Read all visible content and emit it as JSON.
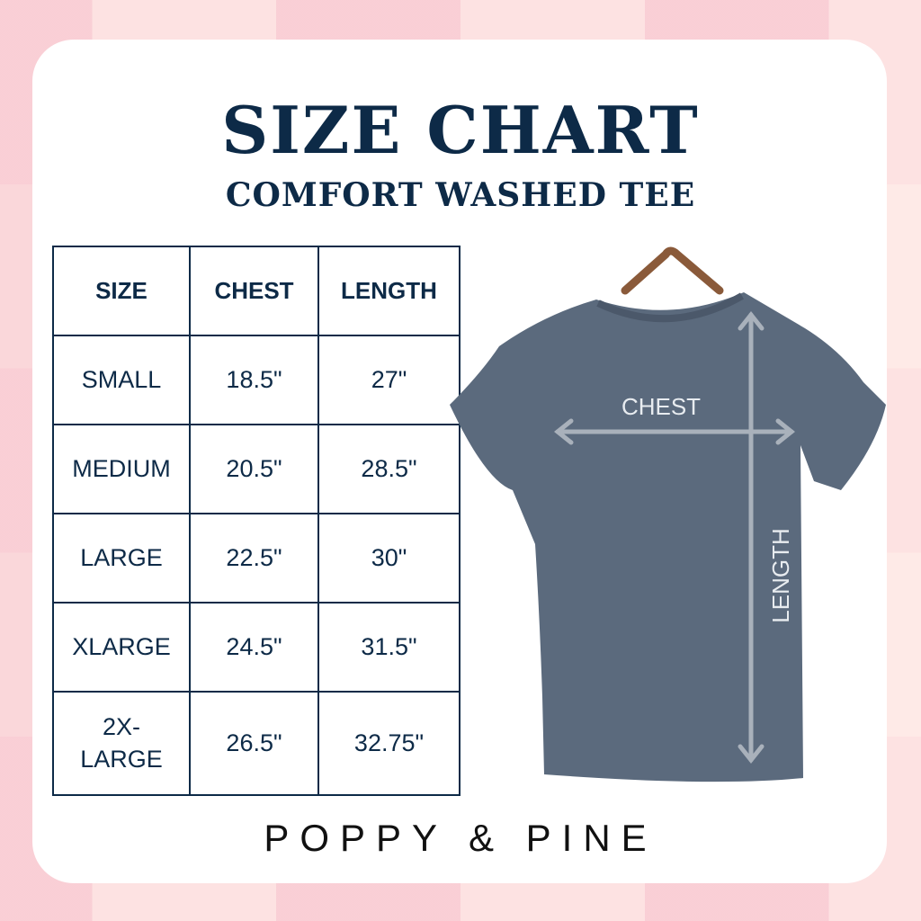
{
  "title": "SIZE CHART",
  "subtitle": "COMFORT WASHED TEE",
  "table": {
    "headers": [
      "SIZE",
      "CHEST",
      "LENGTH"
    ],
    "rows": [
      [
        "SMALL",
        "18.5\"",
        "27\""
      ],
      [
        "MEDIUM",
        "20.5\"",
        "28.5\""
      ],
      [
        "LARGE",
        "22.5\"",
        "30\""
      ],
      [
        "XLARGE",
        "24.5\"",
        "31.5\""
      ],
      [
        "2X-LARGE",
        "26.5\"",
        "32.75\""
      ]
    ]
  },
  "diagram": {
    "chest_label": "CHEST",
    "length_label": "LENGTH",
    "shirt_color": "#5b6a7d"
  },
  "brand": "POPPY & PINE",
  "colors": {
    "navy": "#0d2a47",
    "background_pink": "#fbd8dc"
  }
}
